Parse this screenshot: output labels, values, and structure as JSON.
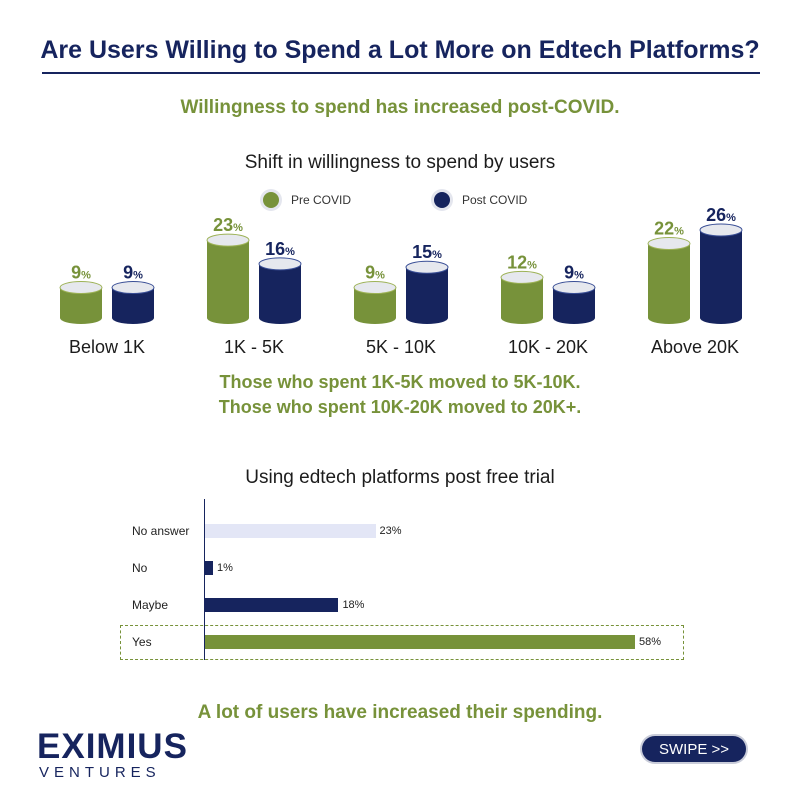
{
  "header": {
    "title": "Are Users Willing to Spend a Lot More on Edtech Platforms?",
    "subtitle": "Willingness to spend has increased post-COVID."
  },
  "chart_data": [
    {
      "type": "bar",
      "title": "Shift in willingness to spend by users",
      "categories": [
        "Below 1K",
        "1K - 5K",
        "5K - 10K",
        "10K - 20K",
        "Above 20K"
      ],
      "series": [
        {
          "name": "Pre COVID",
          "color": "#77923a",
          "values": [
            9,
            23,
            9,
            12,
            22
          ]
        },
        {
          "name": "Post COVID",
          "color": "#16245e",
          "values": [
            9,
            16,
            15,
            9,
            26
          ]
        }
      ],
      "value_suffix": "%",
      "xlabel": "",
      "ylabel": "",
      "ylim": [
        0,
        30
      ],
      "grid": false,
      "legend": "top-center"
    },
    {
      "type": "bar",
      "orientation": "horizontal",
      "title": "Using edtech platforms post free trial",
      "categories": [
        "No answer",
        "No",
        "Maybe",
        "Yes"
      ],
      "values": [
        23,
        1,
        18,
        58
      ],
      "colors": [
        "#e3e6f6",
        "#16245e",
        "#16245e",
        "#77923a"
      ],
      "value_suffix": "%",
      "highlight": "Yes",
      "xlim": [
        0,
        60
      ]
    }
  ],
  "notes": {
    "line1": "Those who spent 1K-5K moved to 5K-10K.",
    "line2": "Those who spent 10K-20K moved to 20K+."
  },
  "conclusion": "A lot of users have increased their spending.",
  "footer": {
    "logo_main": "EXIMIUS",
    "logo_sub": "VENTURES",
    "swipe_label": "SWIPE >>"
  }
}
